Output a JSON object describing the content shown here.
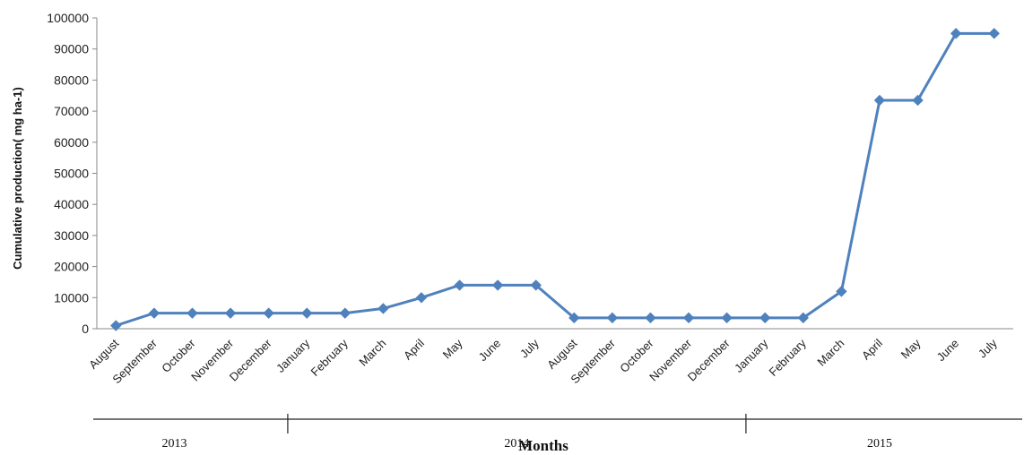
{
  "chart_data": {
    "type": "line",
    "title": "",
    "xlabel": "Months",
    "ylabel": "Cumulative production( mg ha-1)",
    "ylim": [
      0,
      100000
    ],
    "yticks": [
      0,
      10000,
      20000,
      30000,
      40000,
      50000,
      60000,
      70000,
      80000,
      90000,
      100000
    ],
    "grid": false,
    "legend": "none",
    "line_color": "#4f81bd",
    "categories": [
      "August",
      "September",
      "October",
      "November",
      "December",
      "January",
      "February",
      "March",
      "April",
      "May",
      "June",
      "July",
      "August",
      "September",
      "October",
      "November",
      "December",
      "January",
      "February",
      "March",
      "April",
      "May",
      "June",
      "July"
    ],
    "series": [
      {
        "values": [
          1000,
          5000,
          5000,
          5000,
          5000,
          5000,
          5000,
          6500,
          10000,
          14000,
          14000,
          14000,
          3500,
          3500,
          3500,
          3500,
          3500,
          3500,
          3500,
          12000,
          73500,
          73500,
          95000,
          95000
        ]
      }
    ],
    "year_groups": [
      {
        "label": "2013",
        "start": 0,
        "count": 5
      },
      {
        "label": "2014",
        "start": 5,
        "count": 12
      },
      {
        "label": "2015",
        "start": 17,
        "count": 7
      }
    ]
  }
}
